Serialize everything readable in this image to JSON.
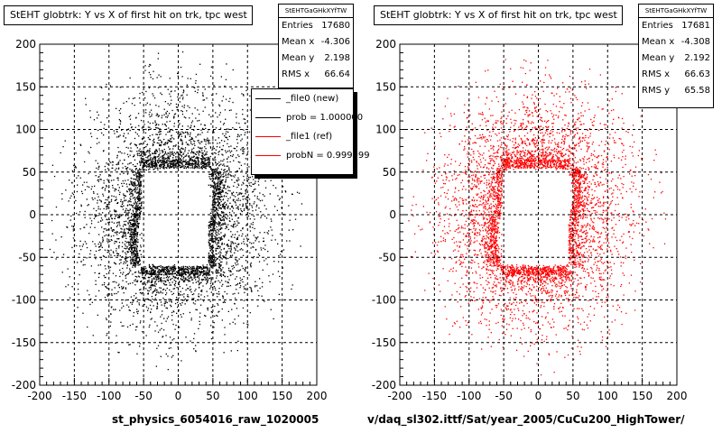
{
  "window": {
    "title": "StEHT globtrk: Y vs X of first hit on trk, tpc west"
  },
  "left_pad": {
    "title": "StEHT globtrk: Y vs X of first hit on trk, tpc west",
    "stats": {
      "header": "StEHTGaGHkXYfTW",
      "rows": [
        {
          "label": "Entries",
          "value": "17680"
        },
        {
          "label": "Mean x",
          "value": "-4.306"
        },
        {
          "label": "Mean y",
          "value": "2.198"
        },
        {
          "label": "RMS x",
          "value": "66.64"
        }
      ]
    },
    "legend": [
      {
        "label": "_file0 (new)",
        "color": "#000000"
      },
      {
        "label": "prob = 1.000000",
        "color": "#000000"
      },
      {
        "label": "_file1 (ref)",
        "color": "#ff0000"
      },
      {
        "label": "probN = 0.999999",
        "color": "#ff0000"
      }
    ],
    "x_title": "st_physics_6054016_raw_1020005"
  },
  "right_pad": {
    "title": "StEHT globtrk: Y vs X of first hit on trk, tpc west",
    "stats": {
      "header": "StEHTGaGHkXYfTW",
      "rows": [
        {
          "label": "Entries",
          "value": "17681"
        },
        {
          "label": "Mean x",
          "value": "-4.308"
        },
        {
          "label": "Mean y",
          "value": "2.192"
        },
        {
          "label": "RMS x",
          "value": "66.63"
        },
        {
          "label": "RMS y",
          "value": "65.58"
        }
      ]
    },
    "x_title": "v/daq_sl302.ittf/Sat/year_2005/CuCu200_HighTower/"
  },
  "chart_data": [
    {
      "type": "scatter",
      "title": "StEHT globtrk: Y vs X of first hit on trk, tpc west",
      "xlabel": "st_physics_6054016_raw_1020005",
      "ylabel": "",
      "xlim": [
        -200,
        200
      ],
      "ylim": [
        -200,
        200
      ],
      "xticks": [
        -200,
        -150,
        -100,
        -50,
        0,
        50,
        100,
        150,
        200
      ],
      "yticks": [
        -200,
        -150,
        -100,
        -50,
        0,
        50,
        100,
        150,
        200
      ],
      "grid": true,
      "marker_color": "#000000",
      "entries": 17680,
      "mean_x": -4.306,
      "mean_y": 2.198,
      "rms_x": 66.64,
      "distribution": {
        "inner_hole_x": [
          -55,
          45
        ],
        "inner_hole_y": [
          -60,
          55
        ],
        "dense_ring_width": 10,
        "outer_radius": 190
      }
    },
    {
      "type": "scatter",
      "title": "StEHT globtrk: Y vs X of first hit on trk, tpc west",
      "xlabel": "v/daq_sl302.ittf/Sat/year_2005/CuCu200_HighTower/",
      "ylabel": "",
      "xlim": [
        -200,
        200
      ],
      "ylim": [
        -200,
        200
      ],
      "xticks": [
        -200,
        -150,
        -100,
        -50,
        0,
        50,
        100,
        150,
        200
      ],
      "yticks": [
        -200,
        -150,
        -100,
        -50,
        0,
        50,
        100,
        150,
        200
      ],
      "grid": true,
      "marker_color": "#ff0000",
      "entries": 17681,
      "mean_x": -4.308,
      "mean_y": 2.192,
      "rms_x": 66.63,
      "rms_y": 65.58,
      "distribution": {
        "inner_hole_x": [
          -55,
          45
        ],
        "inner_hole_y": [
          -60,
          55
        ],
        "dense_ring_width": 10,
        "outer_radius": 190
      }
    }
  ]
}
